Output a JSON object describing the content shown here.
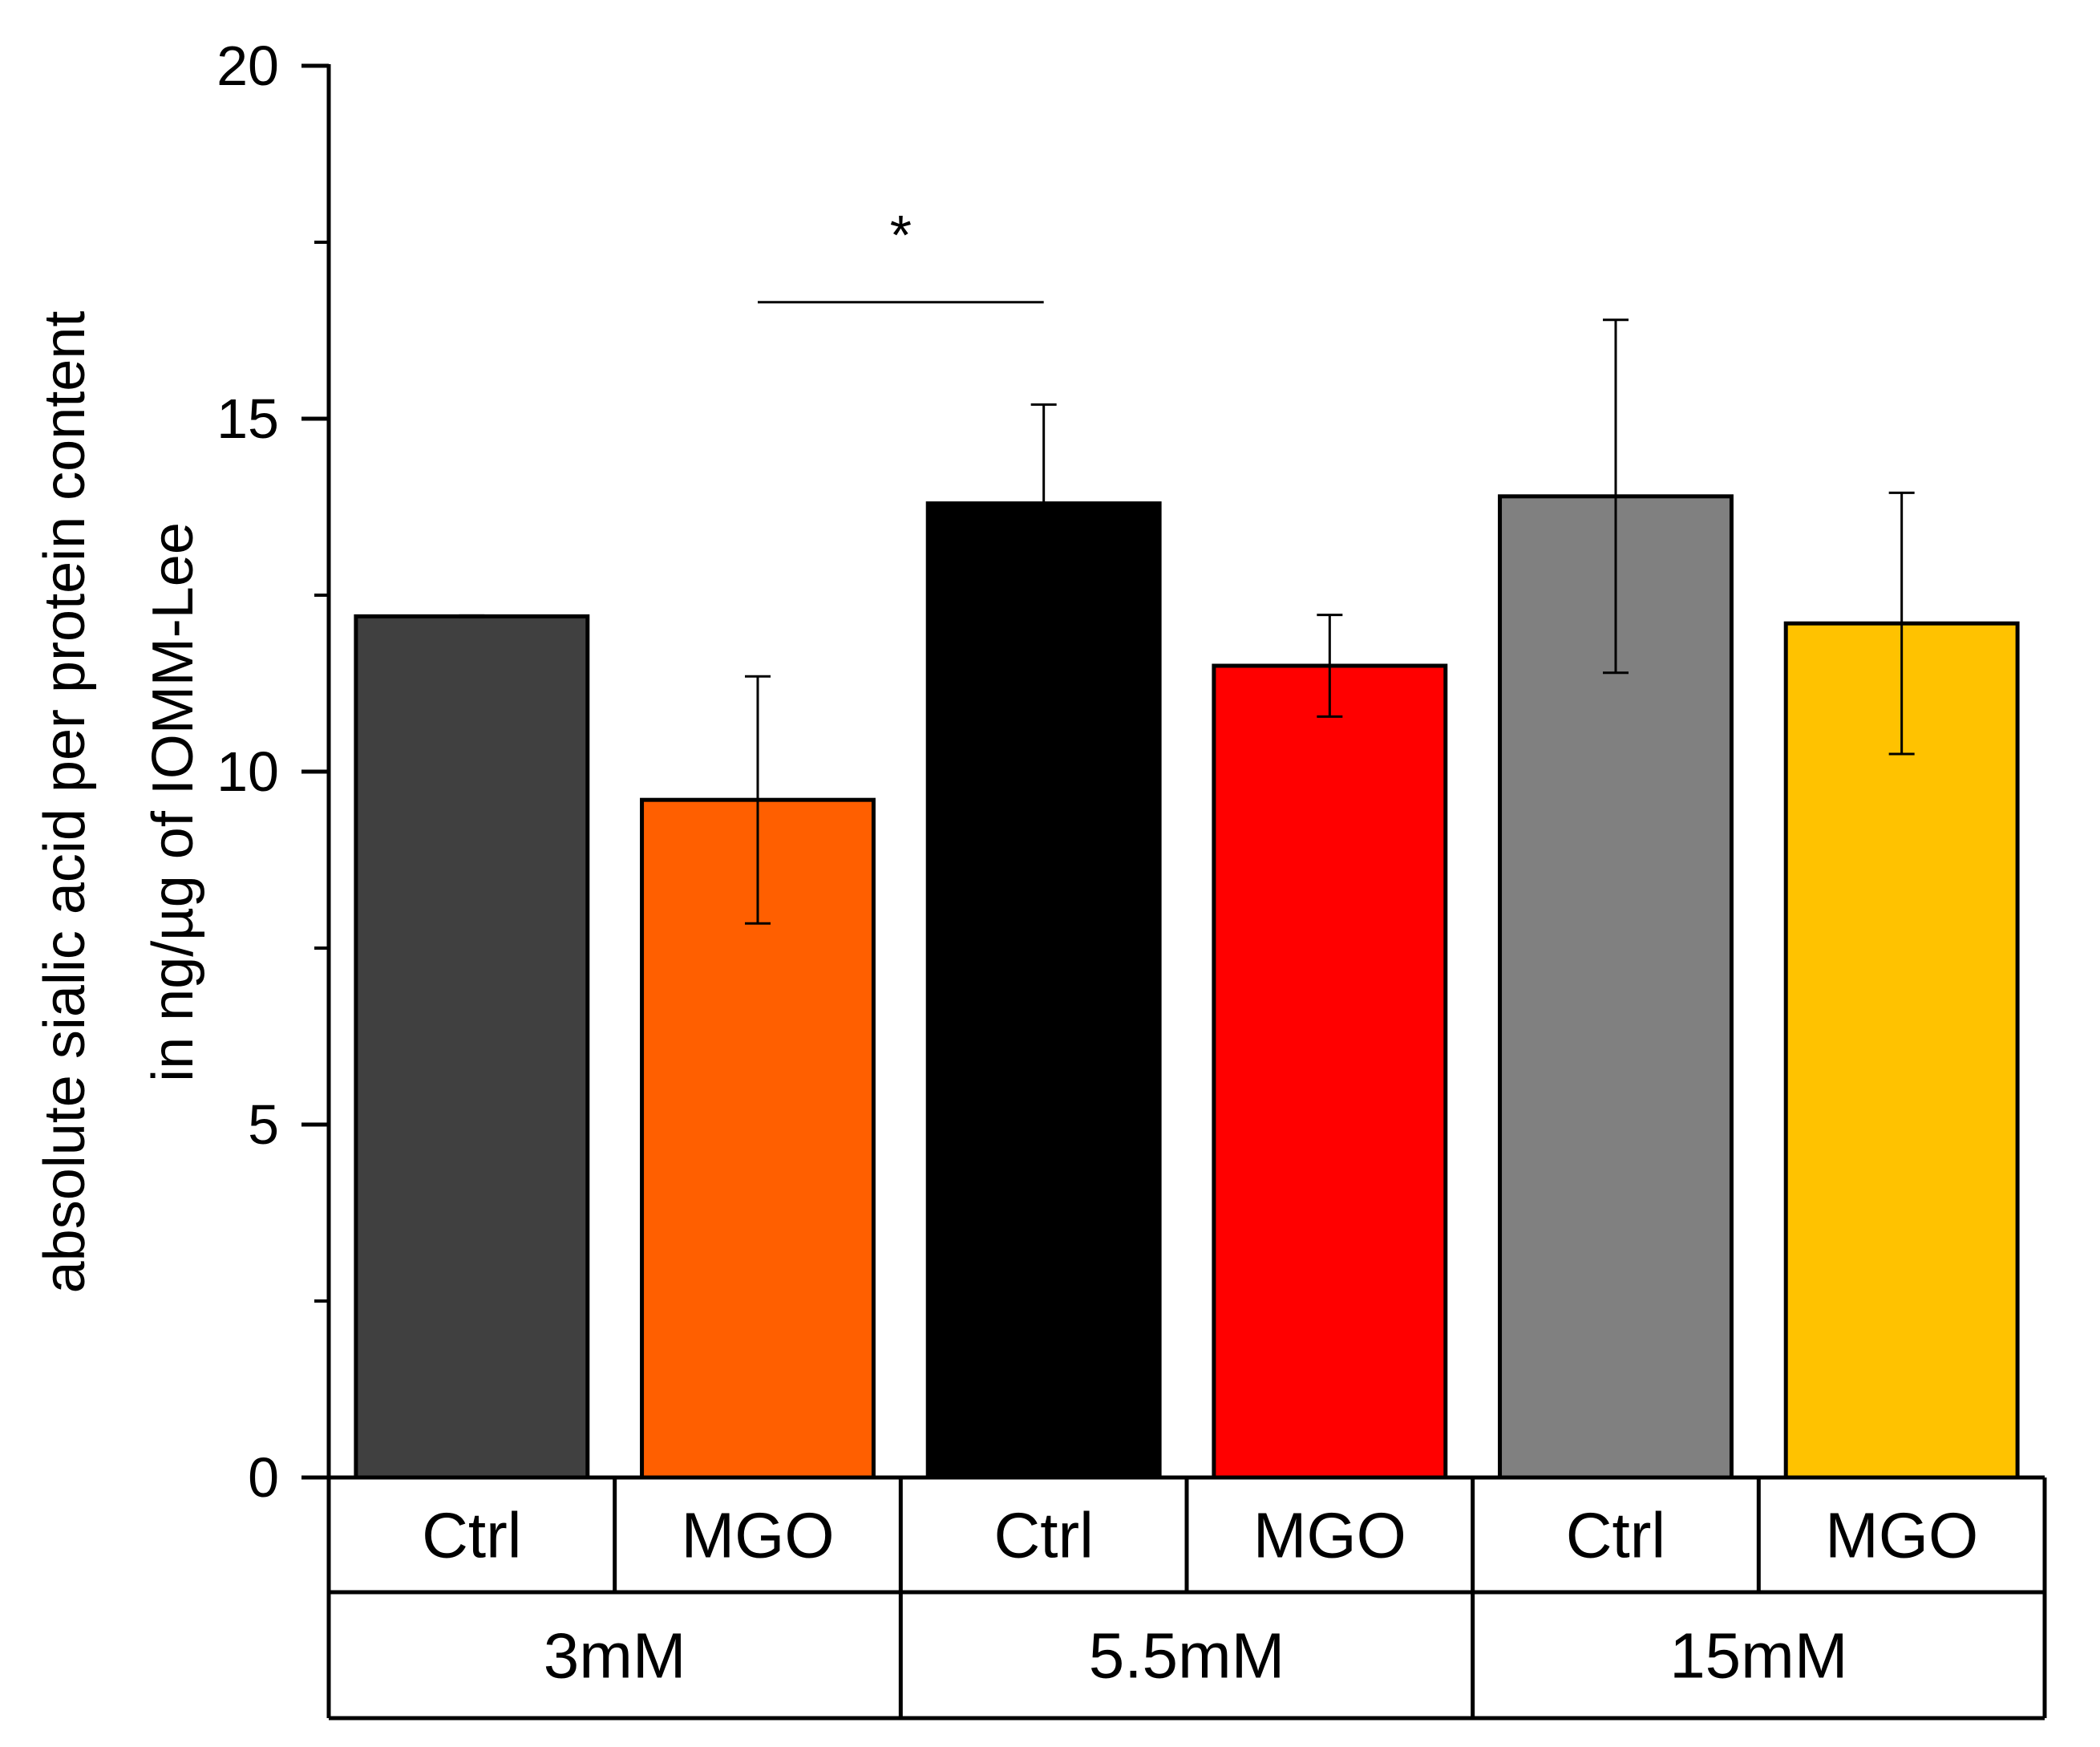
{
  "chart_data": {
    "type": "bar",
    "title": "",
    "ylabel_line1": "absolute sialic acid per protein content",
    "ylabel_line2": "in ng/µg of IOMM-Lee",
    "xlabel": "",
    "ylim": [
      0,
      20
    ],
    "yticks": [
      "0",
      "5",
      "10",
      "15",
      "20"
    ],
    "grid": false,
    "categories": [
      "Ctrl",
      "MGO",
      "Ctrl",
      "MGO",
      "Ctrl",
      "MGO"
    ],
    "groups": [
      "3mM",
      "5.5mM",
      "15mM"
    ],
    "values": [
      12.2,
      9.6,
      13.8,
      11.5,
      13.9,
      12.1
    ],
    "errors": [
      0.0,
      1.75,
      1.4,
      0.72,
      2.5,
      1.85
    ],
    "colors": [
      "#404040",
      "#ff5f00",
      "#000000",
      "#ff0000",
      "#808080",
      "#ffc200"
    ],
    "significance": [
      {
        "from": 1,
        "to": 2,
        "label": "*"
      }
    ]
  }
}
